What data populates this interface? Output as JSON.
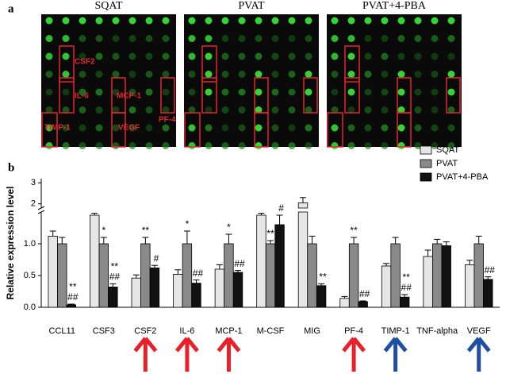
{
  "array_panel": {
    "label": "a",
    "titles": [
      "SQAT",
      "PVAT",
      "PVAT+4-PBA"
    ],
    "boxes": [
      "CSF2",
      "IL-6",
      "MCP-1",
      "PF-4",
      "TIMP-1",
      "VEGF"
    ]
  },
  "chart_data": {
    "type": "bar",
    "label": "b",
    "y_label": "Relative expression level",
    "categories": [
      "CCL11",
      "CSF3",
      "CSF2",
      "IL-6",
      "MCP-1",
      "M-CSF",
      "MIG",
      "PF-4",
      "TIMP-1",
      "TNF-alpha",
      "VEGF"
    ],
    "series": [
      {
        "name": "SQAT",
        "color": "#e6e6e6",
        "values": [
          1.12,
          1.45,
          0.46,
          0.52,
          0.6,
          1.45,
          2.05,
          0.14,
          0.65,
          0.8,
          0.67
        ],
        "errors": [
          0.08,
          0.03,
          0.05,
          0.07,
          0.07,
          0.03,
          0.25,
          0.03,
          0.04,
          0.1,
          0.07
        ],
        "marks": [
          null,
          null,
          null,
          null,
          null,
          null,
          null,
          null,
          null,
          null,
          null
        ]
      },
      {
        "name": "PVAT",
        "color": "#8a8a8a",
        "values": [
          1.0,
          1.0,
          1.0,
          1.0,
          1.0,
          1.0,
          1.0,
          1.0,
          1.0,
          1.0,
          1.0
        ],
        "errors": [
          0.1,
          0.1,
          0.1,
          0.2,
          0.15,
          0.05,
          0.12,
          0.1,
          0.1,
          0.07,
          0.12
        ],
        "marks": [
          null,
          [
            "*"
          ],
          [
            "**"
          ],
          [
            "*"
          ],
          [
            "*"
          ],
          [
            "**"
          ],
          null,
          [
            "**"
          ],
          null,
          null,
          null
        ]
      },
      {
        "name": "PVAT+4-PBA",
        "color": "#111111",
        "values": [
          0.04,
          0.32,
          0.62,
          0.38,
          0.55,
          1.3,
          0.34,
          0.09,
          0.16,
          0.97,
          0.44
        ],
        "errors": [
          0.01,
          0.05,
          0.04,
          0.05,
          0.03,
          0.15,
          0.03,
          0.01,
          0.04,
          0.06,
          0.04
        ],
        "marks": [
          [
            "**",
            "##"
          ],
          [
            "**",
            "##"
          ],
          [
            "#"
          ],
          [
            "##"
          ],
          [
            "##"
          ],
          [
            "#"
          ],
          [
            "**"
          ],
          [
            "##"
          ],
          [
            "**",
            "##"
          ],
          null,
          [
            "##"
          ]
        ]
      }
    ],
    "ylim": [
      0,
      3.2
    ],
    "ybreak": [
      1.5,
      1.8
    ],
    "yticks": [
      {
        "value": 0,
        "label": "0.0"
      },
      {
        "value": 0.5,
        "label": "0.5"
      },
      {
        "value": 1,
        "label": "1.0"
      },
      2,
      3
    ],
    "arrow_colors": [
      null,
      null,
      "#e8202a",
      "#e8202a",
      "#e8202a",
      null,
      null,
      "#e8202a",
      "#1f4fa3",
      null,
      "#1f4fa3"
    ],
    "legend": "top-right"
  }
}
